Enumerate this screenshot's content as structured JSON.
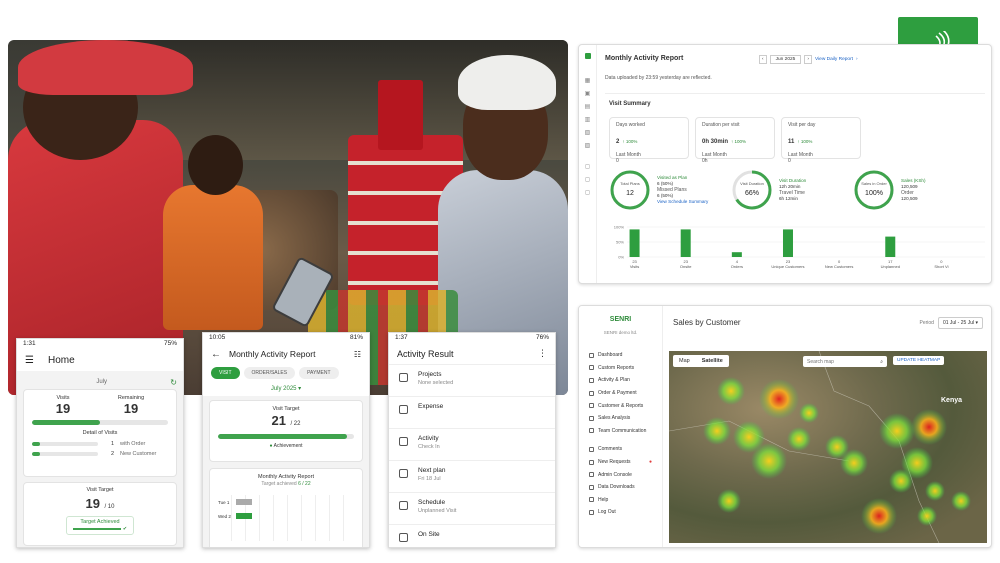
{
  "brand": {
    "logo_text": "SENRI",
    "color": "#2e9e3f"
  },
  "phone_home": {
    "status_time": "1:31",
    "status_battery": "75%",
    "title": "Home",
    "month": "July",
    "visits_label": "Visits",
    "visits_value": "19",
    "remaining_label": "Remaining",
    "remaining_value": "19",
    "visits_progress": 0.5,
    "detail_label": "Detail of Visits",
    "detail_rows": [
      {
        "count": "1",
        "label": "with Order"
      },
      {
        "count": "2",
        "label": "New Customer"
      }
    ],
    "target_label": "Visit Target",
    "target_value": "19",
    "target_total": "/ 10",
    "target_badge": "Target Achieved"
  },
  "phone_report": {
    "status_time": "10:05",
    "status_battery": "81%",
    "title": "Monthly Activity Report",
    "tabs": [
      "VISIT",
      "ORDER/SALES",
      "PAYMENT"
    ],
    "period": "July 2025",
    "visit_target_label": "Visit Target",
    "visit_target_value": "21",
    "visit_target_total": "/ 22",
    "achievement_label": "Achievement",
    "achievement_progress": 0.95,
    "chart_title": "Monthly Activity Report",
    "chart_sub_label": "Target achieved",
    "chart_sub_value": "6 / 22",
    "chart_rows": [
      "Tue 1",
      "Wed 2"
    ]
  },
  "phone_activity": {
    "status_time": "1:37",
    "status_battery": "76%",
    "title": "Activity Result",
    "rows": [
      {
        "icon": "grid-icon",
        "title": "Projects",
        "sub": "None selected"
      },
      {
        "icon": "expense-icon",
        "title": "Expense",
        "sub": ""
      },
      {
        "icon": "doc-icon",
        "title": "Activity",
        "sub": "Check In"
      },
      {
        "icon": "calendar-icon",
        "title": "Next plan",
        "sub": "Fri 18 Jul"
      },
      {
        "icon": "calendar-icon",
        "title": "Schedule",
        "sub": "Unplanned Visit"
      },
      {
        "icon": "pin-icon",
        "title": "On Site",
        "sub": ""
      }
    ]
  },
  "monthly_dashboard": {
    "title": "Monthly Activity Report",
    "month_picker": "Jun 2025",
    "daily_link": "View Daily Report",
    "updated_note": "Data uploaded by 23:59 yesterday are reflected.",
    "section": "Visit Summary",
    "stat_cards": [
      {
        "label": "Days worked",
        "value": "2",
        "delta": "↑ 100%",
        "sub_label": "Last Month",
        "sub_value": "0"
      },
      {
        "label": "Duration per visit",
        "value": "0h 30min",
        "delta": "↑ 100%",
        "sub_label": "Last Month",
        "sub_value": "0h"
      },
      {
        "label": "Visit per day",
        "value": "11",
        "delta": "↑ 100%",
        "sub_label": "Last Month",
        "sub_value": "0"
      }
    ],
    "rings": [
      {
        "label": "Total Plans",
        "value": "12",
        "fill": 1.0
      },
      {
        "label": "Visit Duration",
        "value": "66%",
        "fill": 0.66
      },
      {
        "label": "Sales in Order",
        "value": "100%",
        "fill": 1.0
      }
    ],
    "ring_notes": [
      {
        "a_label": "Visited as Plan",
        "a_value": "6 (50%)",
        "b_label": "Missed Plans",
        "b_value": "6 (50%)",
        "link": "View Schedule Summary"
      },
      {
        "a_label": "Visit Duration",
        "a_value": "12h 20min",
        "b_label": "Travel Time",
        "b_value": "6h 12min",
        "link": ""
      },
      {
        "a_label": "Sales (KSh)",
        "a_value": "120,509",
        "b_label": "Order",
        "b_value": "120,509",
        "link": ""
      }
    ],
    "chart_data": {
      "type": "bar",
      "categories": [
        "Visits",
        "Onsite",
        "Orders",
        "Unique Customers",
        "New Customers",
        "Unplanned",
        "Short Vi"
      ],
      "values": [
        23,
        23,
        4,
        23,
        0,
        17,
        0
      ],
      "ylim": [
        0,
        25
      ],
      "ytick_labels": [
        "100%",
        "50%",
        "0%"
      ],
      "bar_color": "#2e9e3f"
    }
  },
  "sales_dashboard": {
    "brand_sub": "SENRI demo ltd.",
    "title": "Sales by Customer",
    "period_label": "Period",
    "period_value": "01 Jul - 25 Jul",
    "map_tabs": [
      "Map",
      "Satellite"
    ],
    "search_placeholder": "Search map",
    "heatmap_button": "UPDATE HEATMAP",
    "country_label": "Kenya",
    "nav": [
      "Dashboard",
      "Custom Reports",
      "Activity & Plan",
      "Order & Payment",
      "Customer & Reports",
      "Sales Analysis",
      "Team Communication",
      "Comments",
      "New Requests",
      "Admin Console",
      "Data Downloads",
      "Help",
      "Log Out"
    ]
  }
}
